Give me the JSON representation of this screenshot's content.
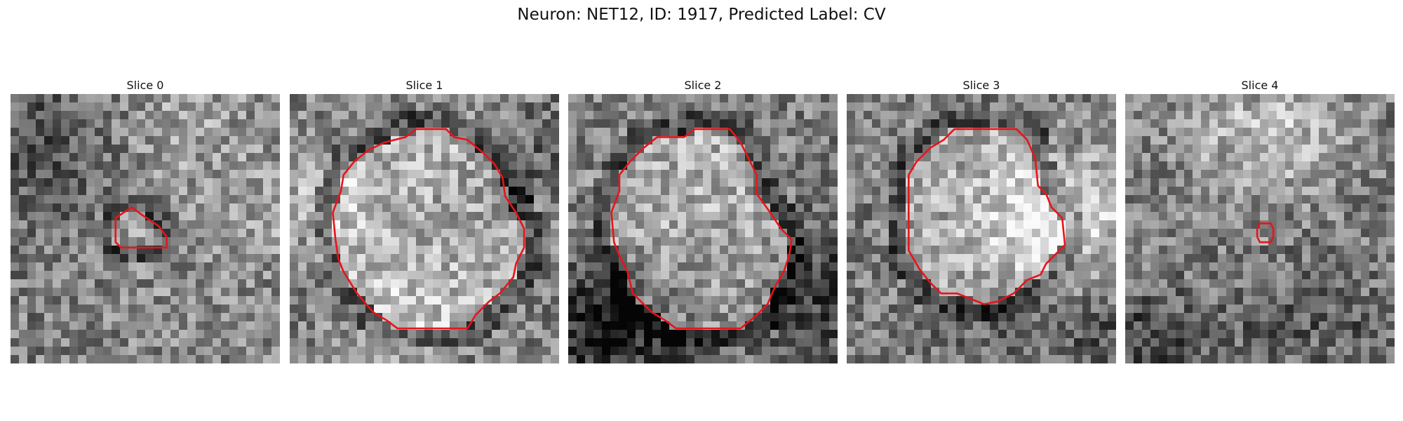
{
  "title": "Neuron: NET12, ID: 1917, Predicted Label: CV",
  "contour_color": "#e8141a",
  "panels": [
    {
      "label": "Slice 0",
      "seed": 11,
      "contour": [
        [
          0.39,
          0.46
        ],
        [
          0.45,
          0.42
        ],
        [
          0.49,
          0.45
        ],
        [
          0.55,
          0.49
        ],
        [
          0.58,
          0.53
        ],
        [
          0.58,
          0.57
        ],
        [
          0.52,
          0.57
        ],
        [
          0.46,
          0.57
        ],
        [
          0.41,
          0.57
        ],
        [
          0.39,
          0.55
        ],
        [
          0.39,
          0.49
        ]
      ],
      "center_bright": 0.18
    },
    {
      "label": "Slice 1",
      "seed": 23,
      "contour": [
        [
          0.43,
          0.16
        ],
        [
          0.47,
          0.13
        ],
        [
          0.58,
          0.13
        ],
        [
          0.61,
          0.16
        ],
        [
          0.66,
          0.17
        ],
        [
          0.72,
          0.22
        ],
        [
          0.76,
          0.26
        ],
        [
          0.79,
          0.31
        ],
        [
          0.8,
          0.38
        ],
        [
          0.84,
          0.44
        ],
        [
          0.87,
          0.5
        ],
        [
          0.87,
          0.57
        ],
        [
          0.84,
          0.63
        ],
        [
          0.83,
          0.68
        ],
        [
          0.78,
          0.74
        ],
        [
          0.74,
          0.77
        ],
        [
          0.69,
          0.82
        ],
        [
          0.66,
          0.87
        ],
        [
          0.4,
          0.87
        ],
        [
          0.36,
          0.84
        ],
        [
          0.31,
          0.81
        ],
        [
          0.25,
          0.74
        ],
        [
          0.2,
          0.66
        ],
        [
          0.18,
          0.61
        ],
        [
          0.17,
          0.54
        ],
        [
          0.16,
          0.44
        ],
        [
          0.19,
          0.36
        ],
        [
          0.2,
          0.3
        ],
        [
          0.24,
          0.25
        ],
        [
          0.29,
          0.21
        ],
        [
          0.35,
          0.18
        ]
      ],
      "center_bright": 0.3
    },
    {
      "label": "Slice 2",
      "seed": 37,
      "contour": [
        [
          0.33,
          0.16
        ],
        [
          0.43,
          0.16
        ],
        [
          0.47,
          0.13
        ],
        [
          0.6,
          0.13
        ],
        [
          0.64,
          0.18
        ],
        [
          0.67,
          0.24
        ],
        [
          0.7,
          0.3
        ],
        [
          0.7,
          0.37
        ],
        [
          0.75,
          0.44
        ],
        [
          0.79,
          0.5
        ],
        [
          0.83,
          0.54
        ],
        [
          0.82,
          0.6
        ],
        [
          0.8,
          0.66
        ],
        [
          0.77,
          0.71
        ],
        [
          0.74,
          0.78
        ],
        [
          0.7,
          0.82
        ],
        [
          0.64,
          0.87
        ],
        [
          0.4,
          0.87
        ],
        [
          0.36,
          0.84
        ],
        [
          0.31,
          0.81
        ],
        [
          0.24,
          0.74
        ],
        [
          0.22,
          0.66
        ],
        [
          0.19,
          0.6
        ],
        [
          0.17,
          0.55
        ],
        [
          0.16,
          0.44
        ],
        [
          0.19,
          0.36
        ],
        [
          0.19,
          0.3
        ],
        [
          0.23,
          0.25
        ],
        [
          0.28,
          0.2
        ]
      ],
      "center_bright": 0.3
    },
    {
      "label": "Slice 3",
      "seed": 49,
      "contour": [
        [
          0.36,
          0.17
        ],
        [
          0.4,
          0.13
        ],
        [
          0.63,
          0.13
        ],
        [
          0.67,
          0.17
        ],
        [
          0.7,
          0.24
        ],
        [
          0.71,
          0.34
        ],
        [
          0.74,
          0.37
        ],
        [
          0.76,
          0.42
        ],
        [
          0.8,
          0.46
        ],
        [
          0.81,
          0.56
        ],
        [
          0.78,
          0.59
        ],
        [
          0.74,
          0.63
        ],
        [
          0.72,
          0.67
        ],
        [
          0.67,
          0.69
        ],
        [
          0.62,
          0.74
        ],
        [
          0.56,
          0.77
        ],
        [
          0.51,
          0.78
        ],
        [
          0.46,
          0.76
        ],
        [
          0.41,
          0.74
        ],
        [
          0.35,
          0.74
        ],
        [
          0.31,
          0.7
        ],
        [
          0.27,
          0.65
        ],
        [
          0.23,
          0.58
        ],
        [
          0.23,
          0.3
        ],
        [
          0.26,
          0.25
        ],
        [
          0.31,
          0.2
        ]
      ],
      "center_bright": 0.26
    },
    {
      "label": "Slice 4",
      "seed": 61,
      "contour": [
        [
          0.5,
          0.48
        ],
        [
          0.54,
          0.48
        ],
        [
          0.55,
          0.5
        ],
        [
          0.55,
          0.53
        ],
        [
          0.54,
          0.55
        ],
        [
          0.5,
          0.55
        ],
        [
          0.49,
          0.53
        ],
        [
          0.49,
          0.5
        ]
      ],
      "center_bright": 0.08
    }
  ]
}
